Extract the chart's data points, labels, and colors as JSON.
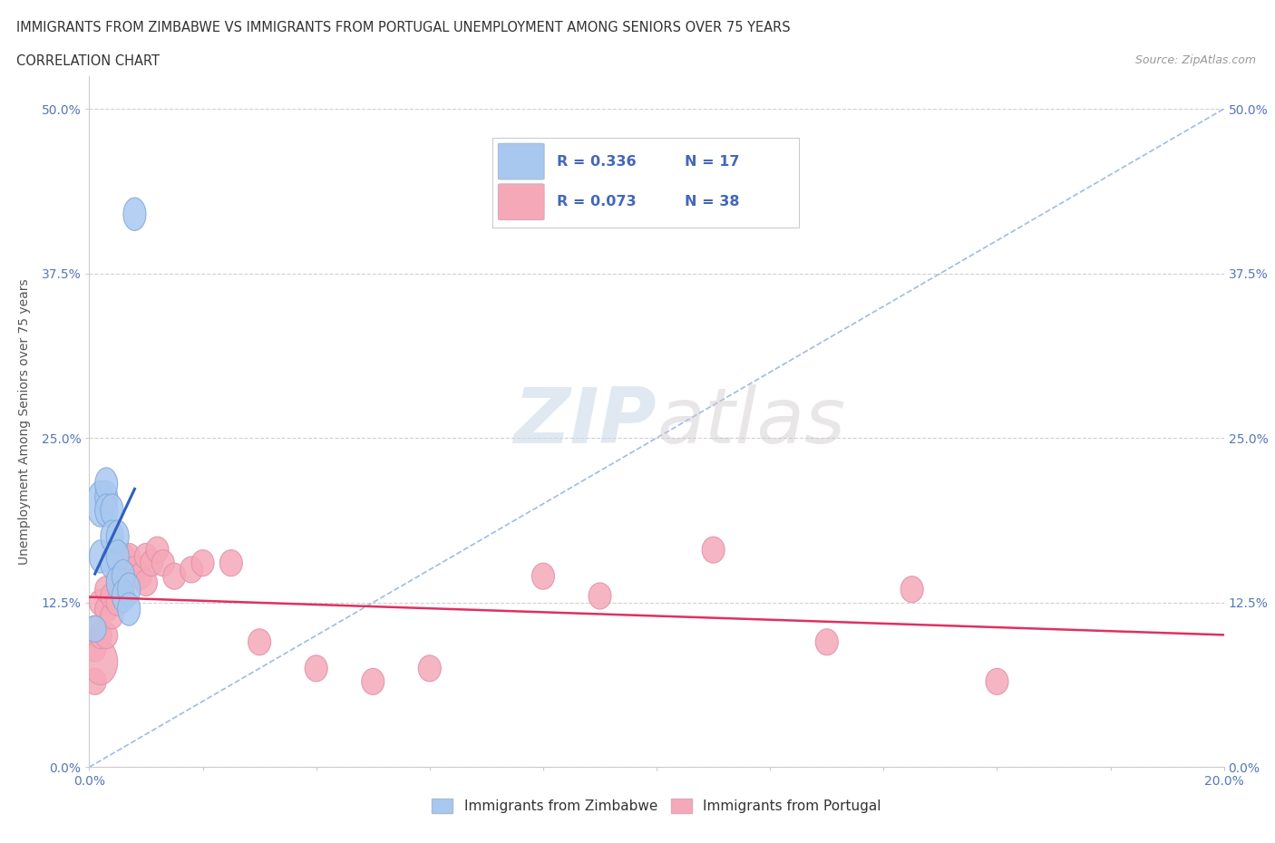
{
  "title_line1": "IMMIGRANTS FROM ZIMBABWE VS IMMIGRANTS FROM PORTUGAL UNEMPLOYMENT AMONG SENIORS OVER 75 YEARS",
  "title_line2": "CORRELATION CHART",
  "source_text": "Source: ZipAtlas.com",
  "ylabel": "Unemployment Among Seniors over 75 years",
  "xlim": [
    0.0,
    0.2
  ],
  "ylim": [
    0.0,
    0.525
  ],
  "yticks": [
    0.0,
    0.125,
    0.25,
    0.375,
    0.5
  ],
  "yticklabels": [
    "0.0%",
    "12.5%",
    "25.0%",
    "37.5%",
    "50.0%"
  ],
  "xticks": [
    0.0,
    0.02,
    0.04,
    0.06,
    0.08,
    0.1,
    0.12,
    0.14,
    0.16,
    0.18,
    0.2
  ],
  "xticklabels": [
    "0.0%",
    "",
    "",
    "",
    "",
    "",
    "",
    "",
    "",
    "",
    "20.0%"
  ],
  "zimbabwe_color": "#a8c8f0",
  "portugal_color": "#f5a8b8",
  "trend_zim_color": "#3060c0",
  "trend_port_color": "#e03060",
  "diagonal_color": "#6090d0",
  "R_zim": 0.336,
  "N_zim": 17,
  "R_port": 0.073,
  "N_port": 38,
  "legend_label_zim": "Immigrants from Zimbabwe",
  "legend_label_port": "Immigrants from Portugal",
  "watermark_zip": "ZIP",
  "watermark_atlas": "atlas",
  "zimbabwe_x": [
    0.001,
    0.002,
    0.002,
    0.003,
    0.003,
    0.003,
    0.004,
    0.004,
    0.004,
    0.005,
    0.005,
    0.005,
    0.006,
    0.006,
    0.007,
    0.007,
    0.008
  ],
  "zimbabwe_y": [
    0.105,
    0.2,
    0.16,
    0.205,
    0.215,
    0.195,
    0.195,
    0.175,
    0.155,
    0.175,
    0.16,
    0.14,
    0.145,
    0.13,
    0.135,
    0.12,
    0.42
  ],
  "zimbabwe_size_w": [
    0.004,
    0.005,
    0.004,
    0.004,
    0.004,
    0.004,
    0.004,
    0.004,
    0.004,
    0.004,
    0.004,
    0.004,
    0.004,
    0.004,
    0.004,
    0.004,
    0.004
  ],
  "zimbabwe_size_h": [
    0.02,
    0.035,
    0.025,
    0.025,
    0.025,
    0.025,
    0.025,
    0.025,
    0.025,
    0.025,
    0.025,
    0.025,
    0.025,
    0.025,
    0.025,
    0.025,
    0.025
  ],
  "portugal_x": [
    0.001,
    0.001,
    0.001,
    0.002,
    0.002,
    0.002,
    0.003,
    0.003,
    0.003,
    0.004,
    0.004,
    0.005,
    0.005,
    0.006,
    0.006,
    0.007,
    0.007,
    0.008,
    0.009,
    0.01,
    0.01,
    0.011,
    0.012,
    0.013,
    0.015,
    0.018,
    0.02,
    0.025,
    0.03,
    0.04,
    0.05,
    0.06,
    0.08,
    0.09,
    0.11,
    0.13,
    0.145,
    0.16
  ],
  "portugal_y": [
    0.065,
    0.09,
    0.105,
    0.08,
    0.1,
    0.125,
    0.1,
    0.12,
    0.135,
    0.115,
    0.13,
    0.125,
    0.145,
    0.13,
    0.16,
    0.145,
    0.16,
    0.15,
    0.145,
    0.14,
    0.16,
    0.155,
    0.165,
    0.155,
    0.145,
    0.15,
    0.155,
    0.155,
    0.095,
    0.075,
    0.065,
    0.075,
    0.145,
    0.13,
    0.165,
    0.095,
    0.135,
    0.065
  ],
  "portugal_size_w": [
    0.004,
    0.004,
    0.004,
    0.006,
    0.004,
    0.004,
    0.004,
    0.004,
    0.004,
    0.004,
    0.004,
    0.004,
    0.004,
    0.004,
    0.004,
    0.004,
    0.004,
    0.004,
    0.004,
    0.004,
    0.004,
    0.004,
    0.004,
    0.004,
    0.004,
    0.004,
    0.004,
    0.004,
    0.004,
    0.004,
    0.004,
    0.004,
    0.004,
    0.004,
    0.004,
    0.004,
    0.004,
    0.004
  ],
  "portugal_size_h": [
    0.02,
    0.02,
    0.02,
    0.035,
    0.02,
    0.02,
    0.02,
    0.02,
    0.02,
    0.02,
    0.02,
    0.02,
    0.02,
    0.02,
    0.02,
    0.02,
    0.02,
    0.02,
    0.02,
    0.02,
    0.02,
    0.02,
    0.02,
    0.02,
    0.02,
    0.02,
    0.02,
    0.02,
    0.02,
    0.02,
    0.02,
    0.02,
    0.02,
    0.02,
    0.02,
    0.02,
    0.02,
    0.02
  ]
}
